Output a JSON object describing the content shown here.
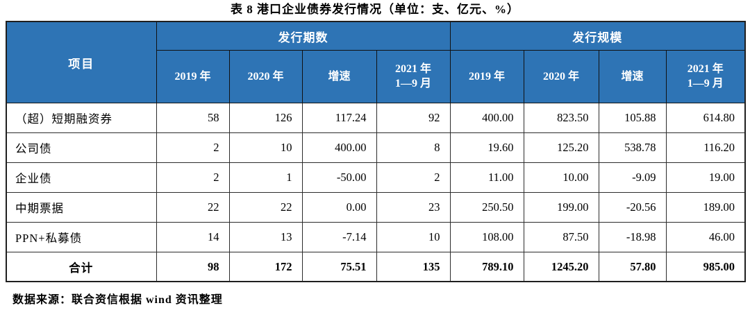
{
  "title": "表 8  港口企业债券发行情况（单位：支、亿元、%）",
  "source_note": "数据来源：联合资信根据 wind 资讯整理",
  "colors": {
    "header_bg": "#2E74B5",
    "header_text": "#FFFFFF",
    "body_text": "#000000",
    "border_dark": "#1F1F1F"
  },
  "table": {
    "item_header": "项目",
    "groups": [
      {
        "label": "发行期数"
      },
      {
        "label": "发行规模"
      }
    ],
    "sub_headers": [
      "2019 年",
      "2020 年",
      "增速",
      "2021 年\n1—9 月",
      "2019 年",
      "2020 年",
      "增速",
      "2021 年\n1—9 月"
    ],
    "rows": [
      {
        "label": "（超）短期融资券",
        "values": [
          "58",
          "126",
          "117.24",
          "92",
          "400.00",
          "823.50",
          "105.88",
          "614.80"
        ],
        "total": false
      },
      {
        "label": "公司债",
        "values": [
          "2",
          "10",
          "400.00",
          "8",
          "19.60",
          "125.20",
          "538.78",
          "116.20"
        ],
        "total": false
      },
      {
        "label": "企业债",
        "values": [
          "2",
          "1",
          "-50.00",
          "2",
          "11.00",
          "10.00",
          "-9.09",
          "19.00"
        ],
        "total": false
      },
      {
        "label": "中期票据",
        "values": [
          "22",
          "22",
          "0.00",
          "23",
          "250.50",
          "199.00",
          "-20.56",
          "189.00"
        ],
        "total": false
      },
      {
        "label": "PPN+私募债",
        "values": [
          "14",
          "13",
          "-7.14",
          "10",
          "108.00",
          "87.50",
          "-18.98",
          "46.00"
        ],
        "total": false
      },
      {
        "label": "合计",
        "values": [
          "98",
          "172",
          "75.51",
          "135",
          "789.10",
          "1245.20",
          "57.80",
          "985.00"
        ],
        "total": true
      }
    ]
  }
}
